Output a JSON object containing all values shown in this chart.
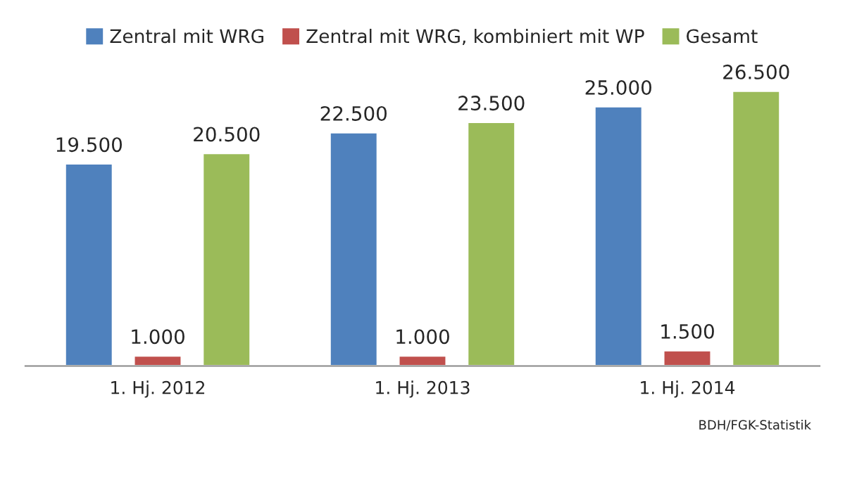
{
  "chart_data": {
    "type": "bar",
    "categories": [
      "1. Hj. 2012",
      "1. Hj. 2013",
      "1. Hj. 2014"
    ],
    "series": [
      {
        "name": "Zentral mit WRG",
        "color": "#4f81bd",
        "values": [
          19500,
          22500,
          25000
        ],
        "value_labels": [
          "19.500",
          "22.500",
          "25.000"
        ]
      },
      {
        "name": "Zentral mit WRG, kombiniert mit WP",
        "color": "#c0504d",
        "values": [
          1000,
          1000,
          1500
        ],
        "value_labels": [
          "1.000",
          "1.000",
          "1.500"
        ]
      },
      {
        "name": "Gesamt",
        "color": "#9bbb59",
        "values": [
          20500,
          23500,
          26500
        ],
        "value_labels": [
          "20.500",
          "23.500",
          "26.500"
        ]
      }
    ],
    "legend": "top",
    "annotations": [
      "BDH/FGK-Statistik"
    ]
  }
}
